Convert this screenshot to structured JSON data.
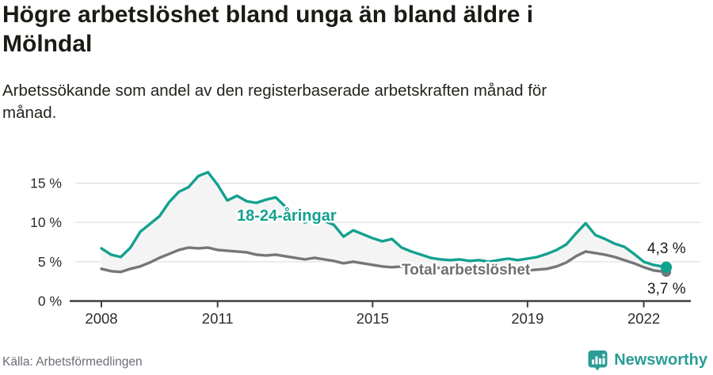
{
  "header": {
    "title_lines": [
      "Högre arbetslöshet bland unga än bland äldre i",
      "Mölndal"
    ],
    "subtitle_lines": [
      "Arbetssökande som andel av den registerbaserade arbetskraften månad för",
      "månad."
    ]
  },
  "footer": {
    "source": "Källa: Arbetsförmedlingen",
    "brand": "Newsworthy",
    "brand_color": "#2a9d96"
  },
  "chart_data": {
    "type": "line",
    "title": "Högre arbetslöshet bland unga än bland äldre i Mölndal",
    "subtitle": "Arbetssökande som andel av den registerbaserade arbetskraften månad för månad.",
    "unit": "%",
    "grid": true,
    "xlim": [
      2007.3,
      2023.3
    ],
    "ylim": [
      0,
      17.5
    ],
    "x_ticks": [
      2008,
      2011,
      2015,
      2019,
      2022
    ],
    "y_ticks": [
      0,
      5,
      10,
      15
    ],
    "y_tick_suffix": " %",
    "area_color": "#f4f4f5",
    "axis_color": "#3f3f3f",
    "grid_color": "#e2e2e4",
    "x": [
      2008.0,
      2008.25,
      2008.5,
      2008.75,
      2009.0,
      2009.25,
      2009.5,
      2009.75,
      2010.0,
      2010.25,
      2010.5,
      2010.75,
      2011.0,
      2011.25,
      2011.5,
      2011.75,
      2012.0,
      2012.25,
      2012.5,
      2012.75,
      2013.0,
      2013.25,
      2013.5,
      2013.75,
      2014.0,
      2014.25,
      2014.5,
      2014.75,
      2015.0,
      2015.25,
      2015.5,
      2015.75,
      2016.0,
      2016.25,
      2016.5,
      2016.75,
      2017.0,
      2017.25,
      2017.5,
      2017.75,
      2018.0,
      2018.25,
      2018.5,
      2018.75,
      2019.0,
      2019.25,
      2019.5,
      2019.75,
      2020.0,
      2020.25,
      2020.5,
      2020.75,
      2021.0,
      2021.25,
      2021.5,
      2021.75,
      2022.0,
      2022.25,
      2022.58
    ],
    "series": [
      {
        "name": "18-24-åringar",
        "color": "#13a18f",
        "end_label": "4,3 %",
        "values": [
          6.7,
          5.9,
          5.6,
          6.8,
          8.8,
          9.8,
          10.8,
          12.6,
          13.9,
          14.5,
          15.9,
          16.4,
          14.8,
          12.8,
          13.4,
          12.7,
          12.5,
          12.9,
          13.2,
          12.0,
          10.8,
          10.0,
          10.6,
          10.2,
          9.7,
          8.2,
          9.0,
          8.5,
          8.0,
          7.6,
          7.9,
          6.8,
          6.3,
          5.9,
          5.5,
          5.3,
          5.2,
          5.3,
          5.1,
          5.2,
          5.0,
          5.2,
          5.4,
          5.2,
          5.4,
          5.6,
          6.0,
          6.5,
          7.2,
          8.6,
          9.9,
          8.4,
          7.9,
          7.3,
          6.9,
          6.0,
          5.0,
          4.6,
          4.3
        ]
      },
      {
        "name": "Total arbetslöshet",
        "color": "#75767a",
        "end_label": "3,7 %",
        "values": [
          4.1,
          3.8,
          3.7,
          4.1,
          4.4,
          4.9,
          5.5,
          6.0,
          6.5,
          6.8,
          6.7,
          6.8,
          6.5,
          6.4,
          6.3,
          6.2,
          5.9,
          5.8,
          5.9,
          5.7,
          5.5,
          5.3,
          5.5,
          5.3,
          5.1,
          4.8,
          5.0,
          4.8,
          4.6,
          4.4,
          4.3,
          4.4,
          4.3,
          4.2,
          4.3,
          4.2,
          4.1,
          4.2,
          4.1,
          4.0,
          4.0,
          3.9,
          4.0,
          3.9,
          3.9,
          4.0,
          4.1,
          4.4,
          4.9,
          5.7,
          6.3,
          6.1,
          5.9,
          5.6,
          5.2,
          4.8,
          4.3,
          3.9,
          3.7
        ]
      }
    ],
    "legend_position": "inline-annotations"
  }
}
